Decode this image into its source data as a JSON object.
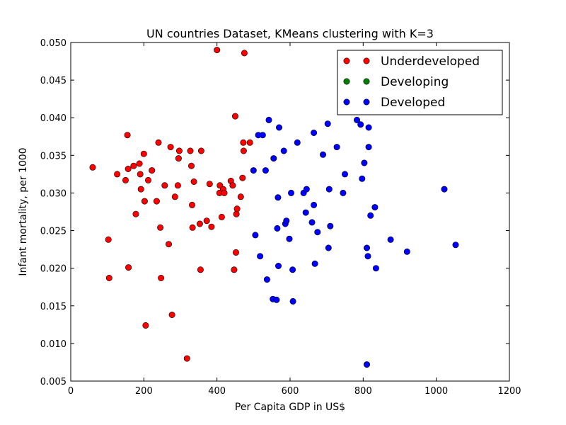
{
  "chart_data": {
    "type": "scatter",
    "title": "UN countries Dataset, KMeans clustering with K=3",
    "xlabel": "Per Capita GDP in US$",
    "ylabel": "Infant mortality, per 1000",
    "xlim": [
      0,
      1200
    ],
    "ylim": [
      0.005,
      0.05
    ],
    "x_ticks": [
      0,
      200,
      400,
      600,
      800,
      1000,
      1200
    ],
    "y_ticks": [
      0.005,
      0.01,
      0.015,
      0.02,
      0.025,
      0.03,
      0.035,
      0.04,
      0.045,
      0.05
    ],
    "x_tick_labels": [
      "0",
      "200",
      "400",
      "600",
      "800",
      "1000",
      "1200"
    ],
    "y_tick_labels": [
      "0.005",
      "0.010",
      "0.015",
      "0.020",
      "0.025",
      "0.030",
      "0.035",
      "0.040",
      "0.045",
      "0.050"
    ],
    "grid": false,
    "legend_position": "top-right",
    "series": [
      {
        "name": "Underdeveloped",
        "color": "#ff0000",
        "points": [
          [
            60,
            0.0334
          ],
          [
            103,
            0.0238
          ],
          [
            105,
            0.0187
          ],
          [
            127,
            0.0325
          ],
          [
            150,
            0.0317
          ],
          [
            155,
            0.0377
          ],
          [
            157,
            0.0332
          ],
          [
            158,
            0.0201
          ],
          [
            172,
            0.0336
          ],
          [
            178,
            0.0272
          ],
          [
            188,
            0.0339
          ],
          [
            190,
            0.0325
          ],
          [
            192,
            0.0305
          ],
          [
            200,
            0.0352
          ],
          [
            202,
            0.0289
          ],
          [
            205,
            0.0124
          ],
          [
            212,
            0.0317
          ],
          [
            222,
            0.033
          ],
          [
            235,
            0.0289
          ],
          [
            240,
            0.0367
          ],
          [
            245,
            0.0254
          ],
          [
            247,
            0.0187
          ],
          [
            257,
            0.031
          ],
          [
            268,
            0.0232
          ],
          [
            273,
            0.0361
          ],
          [
            277,
            0.0138
          ],
          [
            285,
            0.0295
          ],
          [
            293,
            0.031
          ],
          [
            295,
            0.0346
          ],
          [
            297,
            0.0356
          ],
          [
            318,
            0.008
          ],
          [
            327,
            0.0356
          ],
          [
            330,
            0.0336
          ],
          [
            332,
            0.0284
          ],
          [
            333,
            0.0254
          ],
          [
            337,
            0.0315
          ],
          [
            353,
            0.0259
          ],
          [
            355,
            0.0198
          ],
          [
            357,
            0.0356
          ],
          [
            372,
            0.0263
          ],
          [
            380,
            0.0312
          ],
          [
            385,
            0.0255
          ],
          [
            400,
            0.049
          ],
          [
            407,
            0.03
          ],
          [
            408,
            0.031
          ],
          [
            413,
            0.0268
          ],
          [
            417,
            0.0305
          ],
          [
            420,
            0.03
          ],
          [
            438,
            0.0316
          ],
          [
            443,
            0.031
          ],
          [
            447,
            0.0198
          ],
          [
            450,
            0.0402
          ],
          [
            452,
            0.0221
          ],
          [
            453,
            0.0272
          ],
          [
            455,
            0.0279
          ],
          [
            465,
            0.0295
          ],
          [
            470,
            0.032
          ],
          [
            472,
            0.0367
          ],
          [
            473,
            0.0356
          ],
          [
            475,
            0.0486
          ],
          [
            490,
            0.0367
          ]
        ]
      },
      {
        "name": "Developing",
        "color": "#008000",
        "points": []
      },
      {
        "name": "Developed",
        "color": "#0000ff",
        "points": [
          [
            500,
            0.033
          ],
          [
            505,
            0.0244
          ],
          [
            513,
            0.0377
          ],
          [
            518,
            0.0216
          ],
          [
            525,
            0.0377
          ],
          [
            533,
            0.033
          ],
          [
            537,
            0.0185
          ],
          [
            542,
            0.0397
          ],
          [
            553,
            0.0159
          ],
          [
            555,
            0.0346
          ],
          [
            563,
            0.0158
          ],
          [
            565,
            0.0253
          ],
          [
            567,
            0.0294
          ],
          [
            568,
            0.0203
          ],
          [
            570,
            0.0387
          ],
          [
            583,
            0.0356
          ],
          [
            587,
            0.0259
          ],
          [
            590,
            0.0263
          ],
          [
            598,
            0.0239
          ],
          [
            603,
            0.03
          ],
          [
            607,
            0.0198
          ],
          [
            608,
            0.0156
          ],
          [
            620,
            0.0367
          ],
          [
            637,
            0.03
          ],
          [
            643,
            0.0274
          ],
          [
            645,
            0.0305
          ],
          [
            660,
            0.0261
          ],
          [
            665,
            0.0284
          ],
          [
            665,
            0.038
          ],
          [
            668,
            0.0206
          ],
          [
            675,
            0.0248
          ],
          [
            690,
            0.0351
          ],
          [
            703,
            0.0392
          ],
          [
            705,
            0.0227
          ],
          [
            707,
            0.0305
          ],
          [
            710,
            0.0256
          ],
          [
            728,
            0.0361
          ],
          [
            745,
            0.03
          ],
          [
            750,
            0.0325
          ],
          [
            783,
            0.0397
          ],
          [
            793,
            0.0391
          ],
          [
            797,
            0.0319
          ],
          [
            803,
            0.034
          ],
          [
            810,
            0.0072
          ],
          [
            810,
            0.0227
          ],
          [
            813,
            0.0216
          ],
          [
            815,
            0.0387
          ],
          [
            815,
            0.0361
          ],
          [
            820,
            0.027
          ],
          [
            832,
            0.0281
          ],
          [
            835,
            0.02
          ],
          [
            875,
            0.0238
          ],
          [
            920,
            0.0222
          ],
          [
            1022,
            0.0305
          ],
          [
            1053,
            0.0231
          ]
        ]
      }
    ]
  }
}
